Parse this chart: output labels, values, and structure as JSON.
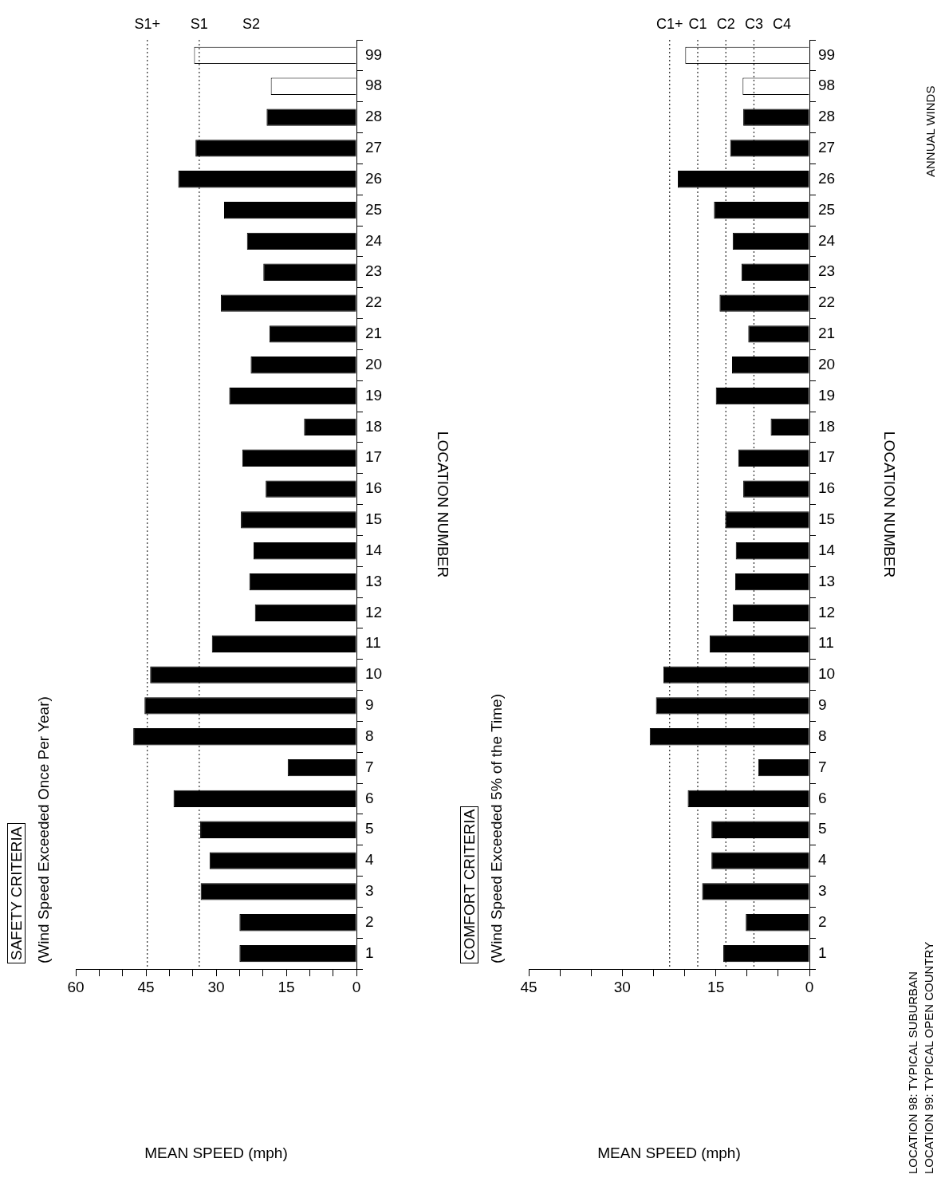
{
  "chart_data": [
    {
      "type": "bar",
      "orientation": "horizontal",
      "title": "SAFETY CRITERIA",
      "subtitle": "(Wind Speed Exceeded Once Per Year)",
      "xlabel": "MEAN SPEED (mph)",
      "ylabel": "LOCATION NUMBER",
      "categories": [
        "99",
        "98",
        "28",
        "27",
        "26",
        "25",
        "24",
        "23",
        "22",
        "21",
        "20",
        "19",
        "18",
        "17",
        "16",
        "15",
        "14",
        "13",
        "12",
        "11",
        "10",
        "9",
        "8",
        "7",
        "6",
        "5",
        "4",
        "3",
        "2",
        "1"
      ],
      "values": [
        34.7,
        18.3,
        19.2,
        34.4,
        38.1,
        28.3,
        23.4,
        19.9,
        29.0,
        18.6,
        22.6,
        27.2,
        11.2,
        24.4,
        19.4,
        24.7,
        22.0,
        22.9,
        21.7,
        30.9,
        44.1,
        45.3,
        47.7,
        14.7,
        39.1,
        33.4,
        31.4,
        33.3,
        25.0,
        25.0
      ],
      "colors": [
        "#ffffff",
        "#ffffff",
        "#000000",
        "#000000",
        "#000000",
        "#000000",
        "#000000",
        "#000000",
        "#000000",
        "#000000",
        "#000000",
        "#000000",
        "#000000",
        "#000000",
        "#000000",
        "#000000",
        "#000000",
        "#000000",
        "#000000",
        "#000000",
        "#000000",
        "#000000",
        "#000000",
        "#000000",
        "#000000",
        "#000000",
        "#000000",
        "#000000",
        "#000000",
        "#000000"
      ],
      "xlim": [
        60,
        0
      ],
      "xticks": [
        60,
        {
          "value": 55,
          "label": null
        },
        {
          "value": 50,
          "label": null
        },
        45,
        {
          "value": 40,
          "label": null
        },
        {
          "value": 35,
          "label": null
        },
        30,
        {
          "value": 25,
          "label": null
        },
        {
          "value": 20,
          "label": null
        },
        15,
        {
          "value": 10,
          "label": null
        },
        {
          "value": 5,
          "label": null
        },
        0
      ],
      "ref_lines": [
        {
          "axis": "x",
          "value": 44.7,
          "label": "S1+",
          "line_style": "dotted"
        },
        {
          "axis": "x",
          "value": 33.6,
          "label": "S1",
          "line_style": "dotted"
        }
      ],
      "annotations": [
        "S2"
      ]
    },
    {
      "type": "bar",
      "orientation": "horizontal",
      "title": "COMFORT CRITERIA",
      "subtitle": "(Wind Speed Exceeded 5% of the Time)",
      "xlabel": "MEAN SPEED (mph)",
      "ylabel": "LOCATION NUMBER",
      "categories": [
        "99",
        "98",
        "28",
        "27",
        "26",
        "25",
        "24",
        "23",
        "22",
        "21",
        "20",
        "19",
        "18",
        "17",
        "16",
        "15",
        "14",
        "13",
        "12",
        "11",
        "10",
        "9",
        "8",
        "7",
        "6",
        "5",
        "4",
        "3",
        "2",
        "1"
      ],
      "values": [
        19.9,
        10.7,
        10.6,
        12.7,
        21.1,
        15.3,
        12.3,
        10.9,
        14.4,
        9.8,
        12.4,
        15.0,
        6.2,
        11.4,
        10.6,
        13.5,
        11.8,
        11.9,
        12.3,
        16.0,
        23.4,
        24.6,
        25.6,
        8.2,
        19.5,
        15.7,
        15.7,
        17.2,
        10.2,
        13.8
      ],
      "colors": [
        "#ffffff",
        "#ffffff",
        "#000000",
        "#000000",
        "#000000",
        "#000000",
        "#000000",
        "#000000",
        "#000000",
        "#000000",
        "#000000",
        "#000000",
        "#000000",
        "#000000",
        "#000000",
        "#000000",
        "#000000",
        "#000000",
        "#000000",
        "#000000",
        "#000000",
        "#000000",
        "#000000",
        "#000000",
        "#000000",
        "#000000",
        "#000000",
        "#000000",
        "#000000",
        "#000000"
      ],
      "xlim": [
        45,
        0
      ],
      "xticks": [
        45,
        {
          "value": 40,
          "label": null
        },
        {
          "value": 35,
          "label": null
        },
        30,
        {
          "value": 25,
          "label": null
        },
        {
          "value": 20,
          "label": null
        },
        15,
        {
          "value": 10,
          "label": null
        },
        {
          "value": 5,
          "label": null
        },
        0
      ],
      "ref_lines": [
        {
          "axis": "x",
          "value": 22.4,
          "label": "C1+",
          "line_style": "dotted"
        },
        {
          "axis": "x",
          "value": 17.9,
          "label": "C1",
          "line_style": "dotted"
        },
        {
          "axis": "x",
          "value": 13.4,
          "label": "C2",
          "line_style": "dotted"
        },
        {
          "axis": "x",
          "value": 8.9,
          "label": "C3",
          "line_style": "dotted"
        }
      ],
      "annotations": [
        "C4",
        "LOCATION 98: TYPICAL SUBURBAN",
        "LOCATION 99: TYPICAL OPEN COUNTRY",
        "ANNUAL WINDS"
      ]
    }
  ]
}
